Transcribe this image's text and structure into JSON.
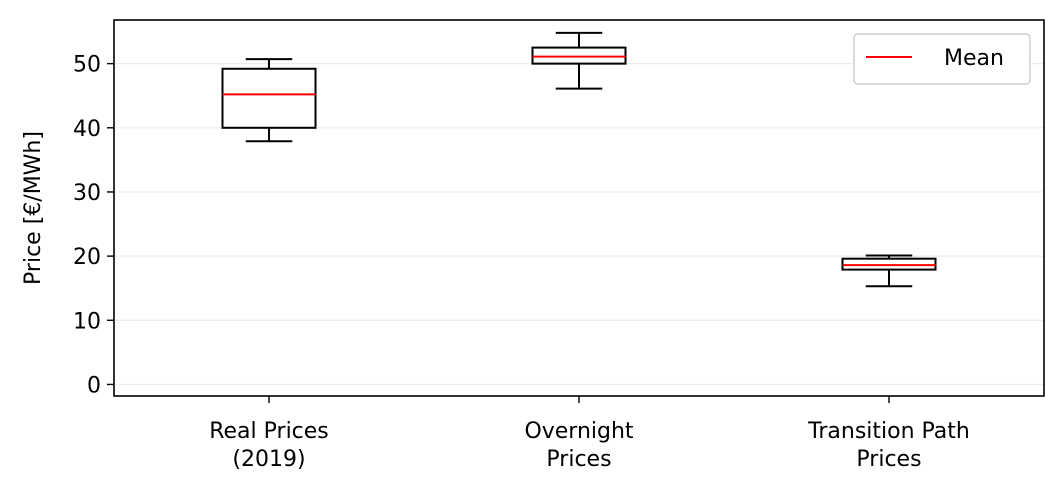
{
  "chart_data": {
    "type": "box",
    "title": "",
    "xlabel": "",
    "ylabel": "Price [€/MWh]",
    "ylim": [
      -1.8,
      56.8
    ],
    "yticks": [
      0,
      10,
      20,
      30,
      40,
      50
    ],
    "grid": "y",
    "legend": {
      "position": "top-right",
      "entries": [
        {
          "label": "Mean",
          "color": "#ff0000"
        }
      ]
    },
    "categories": [
      {
        "label_lines": [
          "Real Prices",
          "(2019)"
        ],
        "whisker_low": 37.9,
        "q1": 40.0,
        "mean": 45.2,
        "q3": 49.2,
        "whisker_high": 50.7
      },
      {
        "label_lines": [
          "Overnight",
          "Prices"
        ],
        "whisker_low": 46.1,
        "q1": 50.0,
        "mean": 51.1,
        "q3": 52.5,
        "whisker_high": 54.8
      },
      {
        "label_lines": [
          "Transition Path",
          "Prices"
        ],
        "whisker_low": 15.3,
        "q1": 17.9,
        "mean": 18.6,
        "q3": 19.6,
        "whisker_high": 20.1
      }
    ],
    "colors": {
      "box": "#000000",
      "mean_line": "#ff0000",
      "grid": "#ececec"
    }
  }
}
